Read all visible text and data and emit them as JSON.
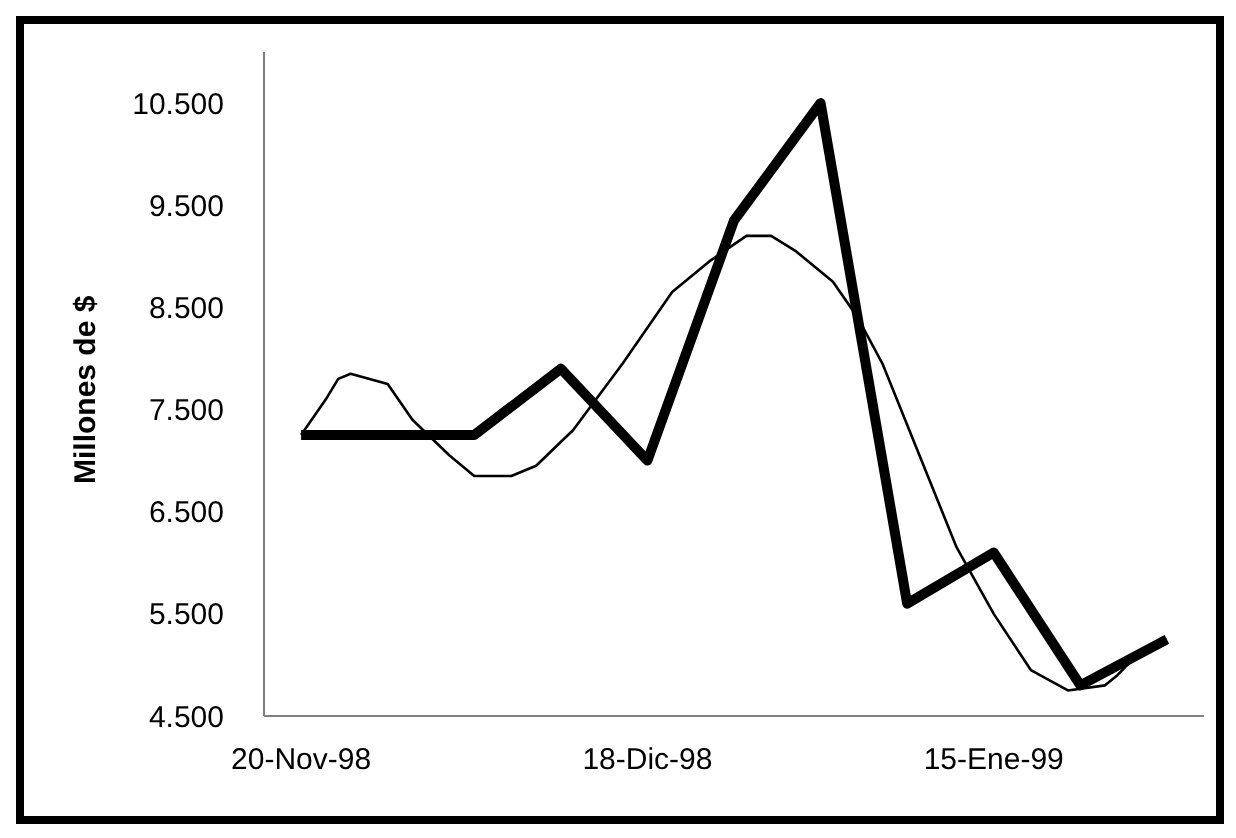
{
  "chart_data": {
    "type": "line",
    "ylabel": "Millones de $",
    "ylim": [
      4500,
      11000
    ],
    "yticks": [
      {
        "value": 4500,
        "label": "4.500"
      },
      {
        "value": 5500,
        "label": "5.500"
      },
      {
        "value": 6500,
        "label": "6.500"
      },
      {
        "value": 7500,
        "label": "7.500"
      },
      {
        "value": 8500,
        "label": "8.500"
      },
      {
        "value": 9500,
        "label": "9.500"
      },
      {
        "value": 10500,
        "label": "10.500"
      }
    ],
    "xlim": [
      "1998-11-17",
      "1999-02-01"
    ],
    "xticks": [
      {
        "value": "1998-11-20",
        "label": "20-Nov-98"
      },
      {
        "value": "1998-12-18",
        "label": "18-Dic-98"
      },
      {
        "value": "1999-01-15",
        "label": "15-Ene-99"
      }
    ],
    "grid": false,
    "legend": false,
    "marker": "none",
    "line_style": "solid",
    "series": [
      {
        "color": "#000000",
        "x": [
          "1998-11-20",
          "1998-11-27",
          "1998-12-04",
          "1998-12-11",
          "1998-12-18",
          "1998-12-25",
          "1999-01-01",
          "1999-01-08",
          "1999-01-15",
          "1999-01-22",
          "1999-01-29"
        ],
        "values": [
          7250,
          7250,
          7250,
          7900,
          7000,
          9350,
          10500,
          5600,
          6100,
          4800,
          5250
        ]
      },
      {
        "color": "#000000",
        "x": [
          "1998-11-20",
          "1998-11-22",
          "1998-11-23",
          "1998-11-24",
          "1998-11-27",
          "1998-11-29",
          "1998-12-02",
          "1998-12-04",
          "1998-12-07",
          "1998-12-09",
          "1998-12-12",
          "1998-12-16",
          "1998-12-20",
          "1998-12-23",
          "1998-12-26",
          "1998-12-28",
          "1998-12-30",
          "1999-01-02",
          "1999-01-04",
          "1999-01-06",
          "1999-01-09",
          "1999-01-12",
          "1999-01-15",
          "1999-01-18",
          "1999-01-21",
          "1999-01-24",
          "1999-01-25",
          "1999-01-27",
          "1999-01-29"
        ],
        "values": [
          7250,
          7600,
          7800,
          7850,
          7750,
          7400,
          7050,
          6850,
          6850,
          6950,
          7300,
          7950,
          8650,
          8950,
          9200,
          9200,
          9050,
          8750,
          8400,
          7950,
          7050,
          6150,
          5500,
          4950,
          4750,
          4800,
          4900,
          5150,
          5250
        ]
      }
    ]
  }
}
